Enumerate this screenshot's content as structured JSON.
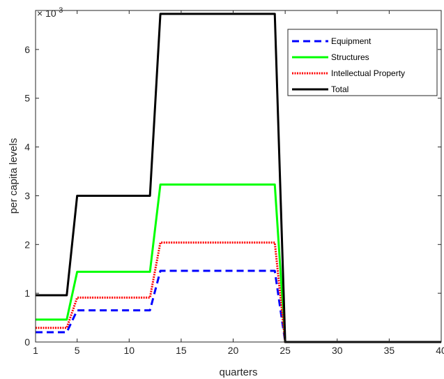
{
  "chart_data": {
    "type": "line",
    "title": "",
    "xlabel": "quarters",
    "ylabel": "per capita levels",
    "y_exponent_label": "× 10",
    "y_exponent_power": "-3",
    "y_multiplier": 0.001,
    "xlim": [
      1,
      40
    ],
    "ylim": [
      0,
      6.8
    ],
    "x_ticks": [
      1,
      5,
      10,
      15,
      20,
      25,
      30,
      35,
      40
    ],
    "x_tick_labels": [
      "1",
      "5",
      "10",
      "15",
      "20",
      "25",
      "30",
      "35",
      "40"
    ],
    "y_ticks": [
      0,
      1,
      2,
      3,
      4,
      5,
      6
    ],
    "y_tick_labels": [
      "0",
      "1",
      "2",
      "3",
      "4",
      "5",
      "6"
    ],
    "grid": false,
    "legend_position": "top-right",
    "series": [
      {
        "name": "Equipment",
        "color": "#0000ff",
        "style": "dashed",
        "x": [
          1,
          4,
          5,
          12,
          13,
          24,
          25,
          40
        ],
        "y": [
          0.2,
          0.2,
          0.65,
          0.65,
          1.46,
          1.46,
          0.0,
          0.0
        ]
      },
      {
        "name": "Structures",
        "color": "#00ff00",
        "style": "solid",
        "x": [
          1,
          4,
          5,
          12,
          13,
          24,
          25,
          40
        ],
        "y": [
          0.46,
          0.46,
          1.44,
          1.44,
          3.23,
          3.23,
          0.0,
          0.0
        ]
      },
      {
        "name": "Intellectual Property",
        "color": "#ff0000",
        "style": "dotted",
        "x": [
          1,
          4,
          5,
          12,
          13,
          24,
          25,
          40
        ],
        "y": [
          0.29,
          0.29,
          0.91,
          0.91,
          2.04,
          2.04,
          0.0,
          0.0
        ]
      },
      {
        "name": "Total",
        "color": "#000000",
        "style": "solid",
        "x": [
          1,
          4,
          5,
          12,
          13,
          24,
          25,
          40
        ],
        "y": [
          0.96,
          0.96,
          3.0,
          3.0,
          6.73,
          6.73,
          0.0,
          0.0
        ]
      }
    ]
  }
}
